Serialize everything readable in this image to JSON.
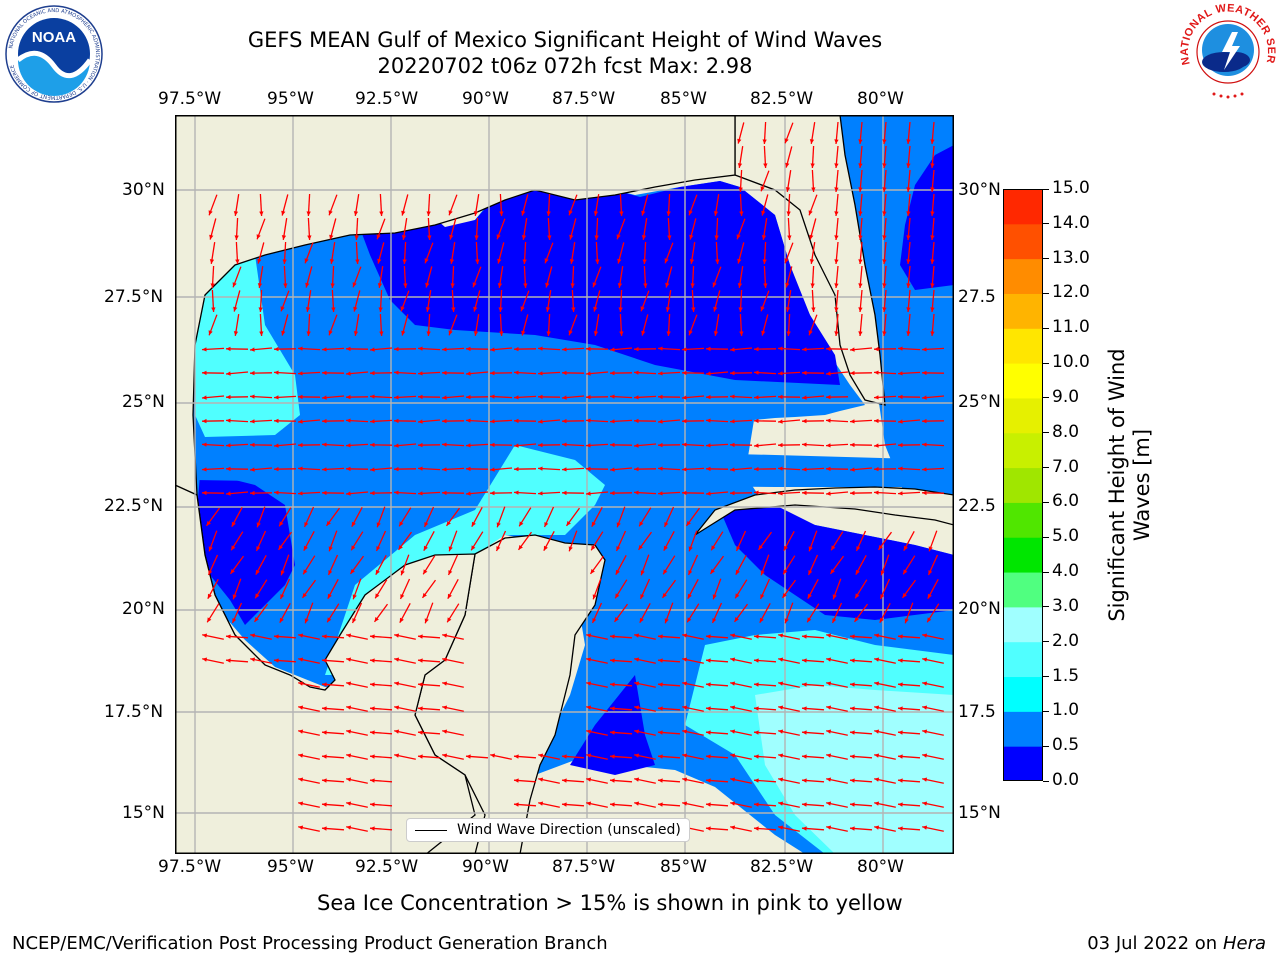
{
  "header": {
    "title_line1": "GEFS MEAN Gulf of Mexico Significant Height of Wind Waves",
    "title_line2": "20220702 t06z 072h fcst   Max: 2.98"
  },
  "logos": {
    "noaa_text": "NOAA",
    "noaa_ring": "NATIONAL OCEANIC AND ATMOSPHERIC ADMINISTRATION · U.S. DEPARTMENT OF COMMERCE",
    "nws_ring": "NATIONAL WEATHER SERVICE"
  },
  "map": {
    "lon_ticks": [
      "97.5°W",
      "95°W",
      "92.5°W",
      "90°W",
      "87.5°W",
      "85°W",
      "82.5°W",
      "80°W"
    ],
    "lat_ticks_left": [
      "30°N",
      "27.5°N",
      "25°N",
      "22.5°N",
      "20°N",
      "17.5°N",
      "15°N"
    ],
    "lat_ticks_right": [
      "30°N",
      "27.5",
      "25°N",
      "22.5",
      "20°N",
      "17.5",
      "15°N"
    ],
    "legend_label": "Wind Wave Direction (unscaled)",
    "colors": {
      "land": "#efefdc",
      "coast": "#000000",
      "grid": "#b4b4b4",
      "arrow": "#ff0000"
    }
  },
  "colorbar": {
    "label": "Significant Height of Wind Waves [m]",
    "label_line1": "Significant Height of Wind",
    "label_line2": "Waves [m]",
    "ticks": [
      "0.0",
      "0.5",
      "1.0",
      "1.5",
      "2.0",
      "3.0",
      "4.0",
      "5.0",
      "6.0",
      "7.0",
      "8.0",
      "9.0",
      "10.0",
      "11.0",
      "12.0",
      "13.0",
      "14.0",
      "15.0"
    ],
    "colors": [
      "#0000ff",
      "#0080ff",
      "#00ffff",
      "#50ffff",
      "#a0ffff",
      "#50ff80",
      "#00e600",
      "#50e600",
      "#a0e600",
      "#c8f000",
      "#e6f000",
      "#ffff00",
      "#ffe600",
      "#ffb400",
      "#ff8c00",
      "#ff5000",
      "#ff2800",
      "#ff0000"
    ]
  },
  "footer": {
    "note": "Sea Ice Concentration > 15% is shown in pink to yellow",
    "left": "NCEP/EMC/Verification Post Processing Product Generation Branch",
    "right_date": "03 Jul 2022 on ",
    "right_host": "Hera"
  }
}
